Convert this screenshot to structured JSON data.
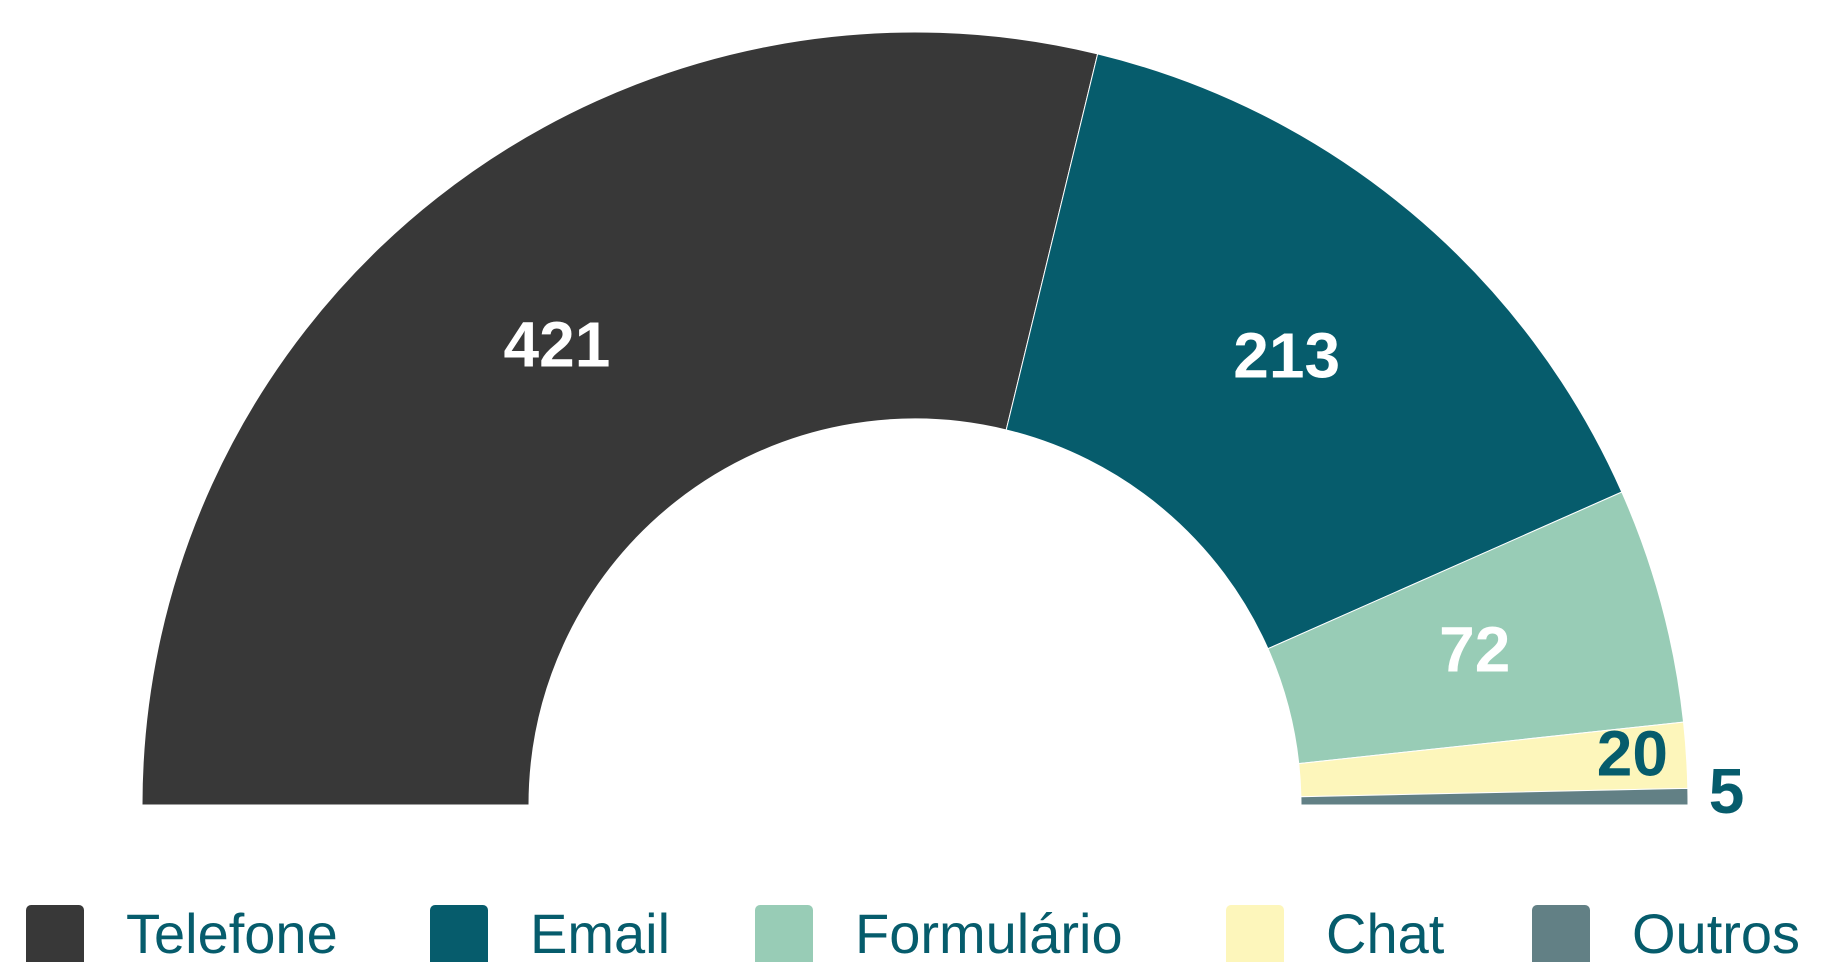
{
  "chart_data": {
    "type": "semi-donut",
    "categories": [
      "Telefone",
      "Email",
      "Formulário",
      "Chat",
      "Outros"
    ],
    "values": [
      421,
      213,
      72,
      20,
      5
    ],
    "colors": [
      "#383838",
      "#065c6c",
      "#98ccb6",
      "#fdf6bb",
      "#628085"
    ],
    "label_colors": [
      "#ffffff",
      "#ffffff",
      "#ffffff",
      "#065c6c",
      "#065c6c"
    ],
    "legend": "bottom"
  }
}
